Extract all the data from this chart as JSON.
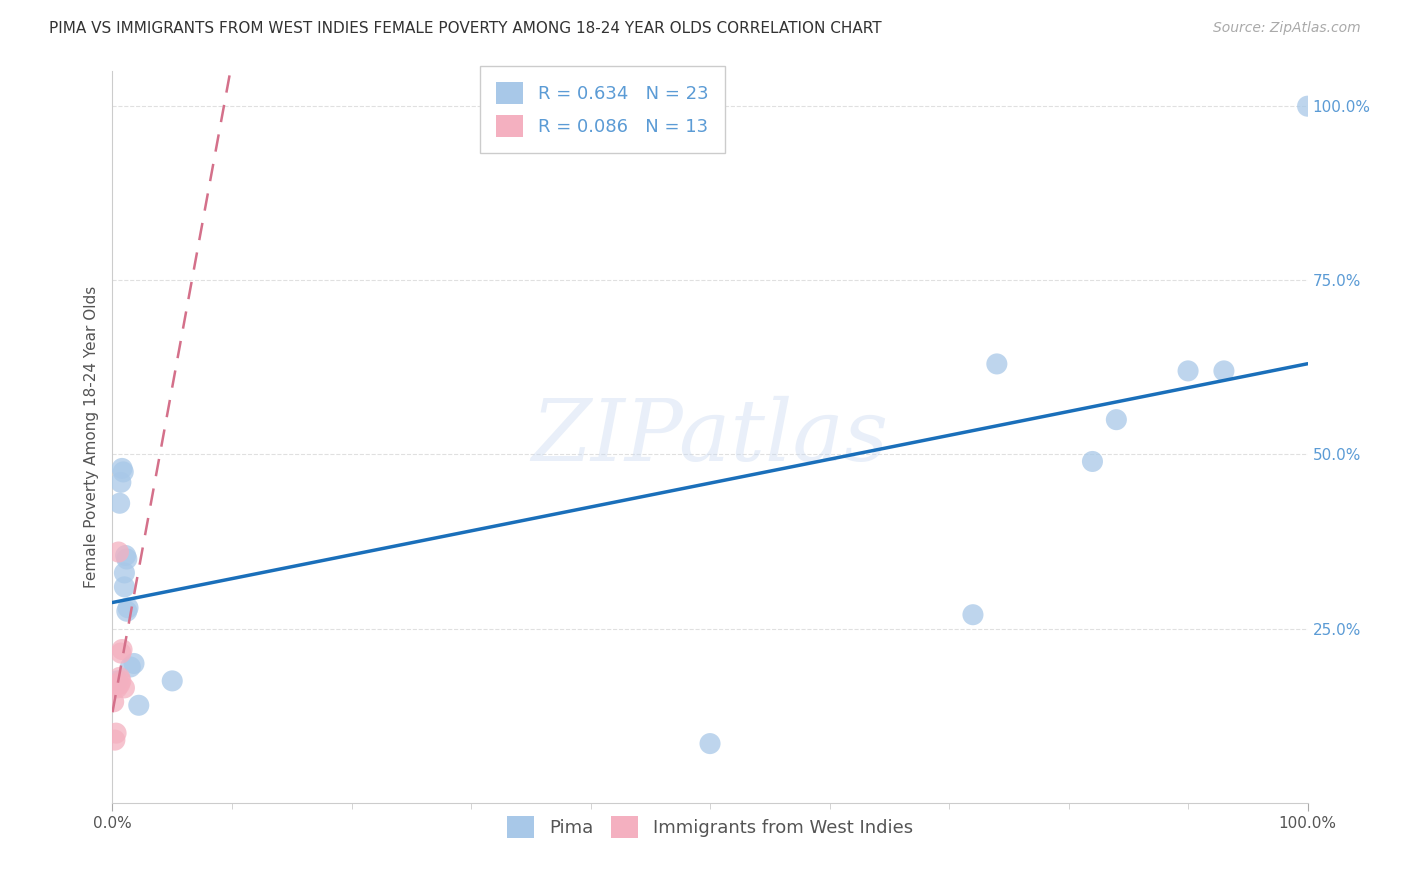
{
  "title": "PIMA VS IMMIGRANTS FROM WEST INDIES FEMALE POVERTY AMONG 18-24 YEAR OLDS CORRELATION CHART",
  "source": "Source: ZipAtlas.com",
  "ylabel": "Female Poverty Among 18-24 Year Olds",
  "watermark": "ZIPatlas",
  "xlim": [
    0.0,
    1.0
  ],
  "ylim": [
    0.0,
    1.05
  ],
  "pima_color": "#a8c8e8",
  "wi_color": "#f4b0c0",
  "pima_line_color": "#1a6fba",
  "wi_line_color": "#d4708a",
  "pima_R": "0.634",
  "pima_N": "23",
  "wi_R": "0.086",
  "wi_N": "13",
  "pima_x": [
    0.004,
    0.006,
    0.007,
    0.008,
    0.009,
    0.01,
    0.01,
    0.011,
    0.012,
    0.012,
    0.013,
    0.015,
    0.018,
    0.022,
    0.05,
    0.5,
    0.72,
    0.74,
    0.82,
    0.84,
    0.9,
    0.93,
    1.0
  ],
  "pima_y": [
    0.175,
    0.43,
    0.46,
    0.48,
    0.475,
    0.31,
    0.33,
    0.355,
    0.35,
    0.275,
    0.28,
    0.195,
    0.2,
    0.14,
    0.175,
    0.085,
    0.27,
    0.63,
    0.49,
    0.55,
    0.62,
    0.62,
    1.0
  ],
  "wi_x": [
    0.001,
    0.002,
    0.003,
    0.004,
    0.004,
    0.005,
    0.005,
    0.006,
    0.006,
    0.007,
    0.007,
    0.008,
    0.01
  ],
  "wi_y": [
    0.145,
    0.09,
    0.1,
    0.165,
    0.17,
    0.36,
    0.17,
    0.18,
    0.17,
    0.175,
    0.215,
    0.22,
    0.165
  ],
  "ytick_positions": [
    0.25,
    0.5,
    0.75,
    1.0
  ],
  "ytick_labels": [
    "25.0%",
    "50.0%",
    "75.0%",
    "100.0%"
  ],
  "grid_color": "#e0e0e0",
  "background_color": "#ffffff",
  "title_fontsize": 11,
  "axis_label_fontsize": 11,
  "tick_fontsize": 11,
  "legend_fontsize": 13,
  "source_fontsize": 10
}
